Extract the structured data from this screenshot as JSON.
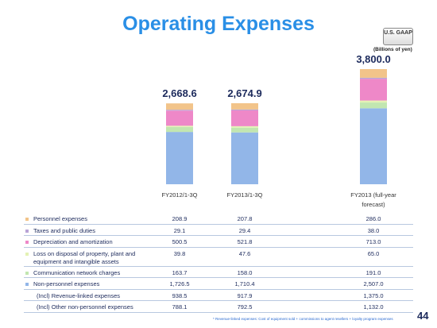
{
  "header": {
    "title": "Operating Expenses",
    "badge": "U.S. GAAP",
    "unit": "(Billions of yen)"
  },
  "chart_data": {
    "type": "stacked-bar",
    "categories": [
      "FY2012/1-3Q",
      "FY2013/1-3Q",
      "FY2013 (full-year forecast)"
    ],
    "totals": [
      2668.6,
      2674.9,
      3800.0
    ],
    "total_labels": [
      "2,668.6",
      "2,674.9",
      "3,800.0"
    ],
    "series": [
      {
        "name": "Personnel expenses",
        "color": "#f2c48a",
        "values": [
          208.9,
          207.8,
          286.0
        ],
        "value_labels": [
          "208.9",
          "207.8",
          "286.0"
        ]
      },
      {
        "name": "Taxes and public duties",
        "color": "#b9a4d6",
        "values": [
          29.1,
          29.4,
          38.0
        ],
        "value_labels": [
          "29.1",
          "29.4",
          "38.0"
        ]
      },
      {
        "name": "Depreciation and amortization",
        "color": "#ee88c8",
        "values": [
          500.5,
          521.8,
          713.0
        ],
        "value_labels": [
          "500.5",
          "521.8",
          "713.0"
        ]
      },
      {
        "name": "Loss on disposal of property, plant and equipment and intangible assets",
        "color": "#e4f2b4",
        "values": [
          39.8,
          47.6,
          65.0
        ],
        "value_labels": [
          "39.8",
          "47.6",
          "65.0"
        ]
      },
      {
        "name": "Communication network charges",
        "color": "#c2e6b0",
        "values": [
          163.7,
          158.0,
          191.0
        ],
        "value_labels": [
          "163.7",
          "158.0",
          "191.0"
        ]
      },
      {
        "name": "Non-personnel expenses",
        "color": "#92b6e8",
        "values": [
          1726.5,
          1710.4,
          2507.0
        ],
        "value_labels": [
          "1,726.5",
          "1,710.4",
          "2,507.0"
        ]
      }
    ],
    "extra_rows": [
      {
        "name": "(Incl) Revenue-linked expenses",
        "value_labels": [
          "938.5",
          "917.9",
          "1,375.0"
        ]
      },
      {
        "name": "(Incl) Other non-personnel expenses",
        "value_labels": [
          "788.1",
          "792.5",
          "1,132.0"
        ]
      }
    ]
  },
  "footnote": "* Revenue-linked expenses: Cost of equipment sold + commissions to agent resellers + loyalty program expenses",
  "page_number": "44"
}
